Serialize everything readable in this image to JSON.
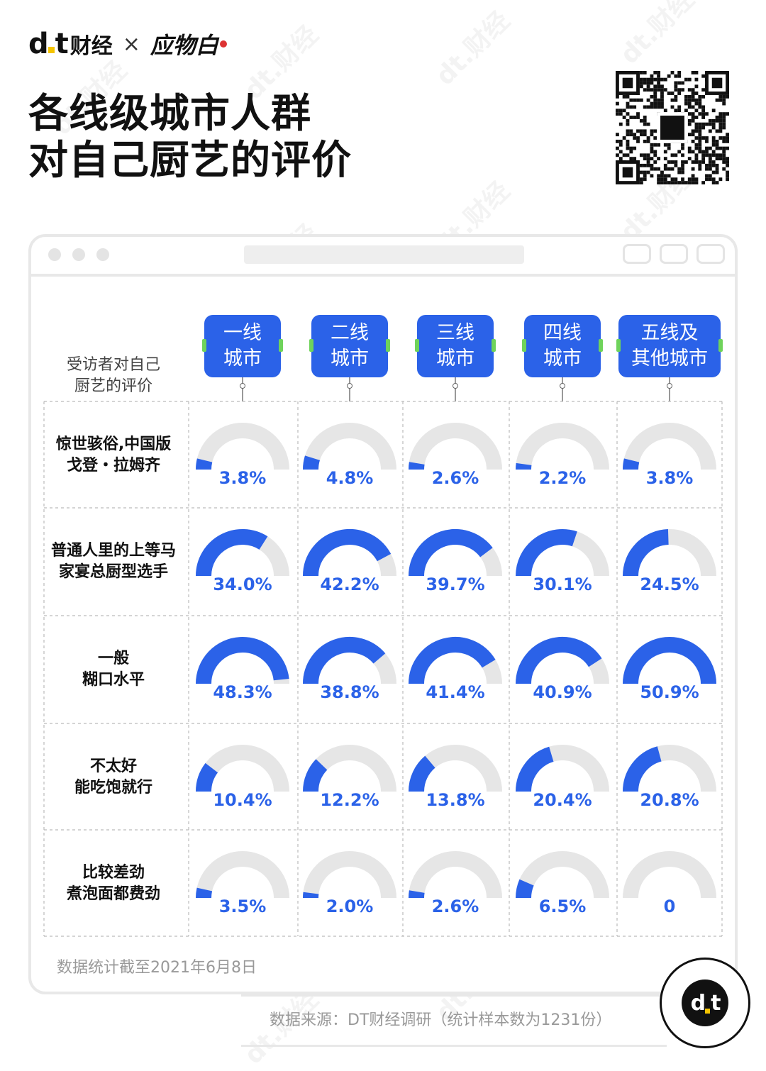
{
  "brand": {
    "logo": "dt",
    "name": "财经",
    "times": "×",
    "partner": "应物白"
  },
  "title_lines": [
    "各线级城市人群",
    "对自己厨艺的评价"
  ],
  "corner_label_lines": [
    "受访者对自己",
    "厨艺的评价"
  ],
  "colors": {
    "accent": "#2b62e8",
    "track": "#e6e6e6",
    "nub": "#6fd35b"
  },
  "icons": [
    "close-icon",
    "minimize-icon",
    "maximize-icon",
    "qr-code",
    "dt-badge-icon"
  ],
  "chart_data": {
    "type": "gauge-grid",
    "categories": [
      "一线城市",
      "二线城市",
      "三线城市",
      "四线城市",
      "五线及其他城市"
    ],
    "column_labels": [
      [
        "一线",
        "城市"
      ],
      [
        "二线",
        "城市"
      ],
      [
        "三线",
        "城市"
      ],
      [
        "四线",
        "城市"
      ],
      [
        "五线及",
        "其他城市"
      ]
    ],
    "rows": [
      {
        "label_lines": [
          "惊世骇俗,中国版",
          "戈登・拉姆齐"
        ],
        "values": [
          3.8,
          4.8,
          2.6,
          2.2,
          3.8
        ],
        "labels": [
          "3.8%",
          "4.8%",
          "2.6%",
          "2.2%",
          "3.8%"
        ]
      },
      {
        "label_lines": [
          "普通人里的上等马",
          "家宴总厨型选手"
        ],
        "values": [
          34.0,
          42.2,
          39.7,
          30.1,
          24.5
        ],
        "labels": [
          "34.0%",
          "42.2%",
          "39.7%",
          "30.1%",
          "24.5%"
        ]
      },
      {
        "label_lines": [
          "一般",
          "糊口水平"
        ],
        "values": [
          48.3,
          38.8,
          41.4,
          40.9,
          50.9
        ],
        "labels": [
          "48.3%",
          "38.8%",
          "41.4%",
          "40.9%",
          "50.9%"
        ]
      },
      {
        "label_lines": [
          "不太好",
          "能吃饱就行"
        ],
        "values": [
          10.4,
          12.2,
          13.8,
          20.4,
          20.8
        ],
        "labels": [
          "10.4%",
          "12.2%",
          "13.8%",
          "20.4%",
          "20.8%"
        ]
      },
      {
        "label_lines": [
          "比较差劲",
          "煮泡面都费劲"
        ],
        "values": [
          3.5,
          2.0,
          2.6,
          6.5,
          0
        ],
        "labels": [
          "3.5%",
          "2.0%",
          "2.6%",
          "6.5%",
          "0"
        ]
      }
    ],
    "scale_max": 50
  },
  "note": "数据统计截至2021年6月8日",
  "source": "数据来源：DT财经调研（统计样本数为1231份）",
  "watermark": "dt.财经"
}
